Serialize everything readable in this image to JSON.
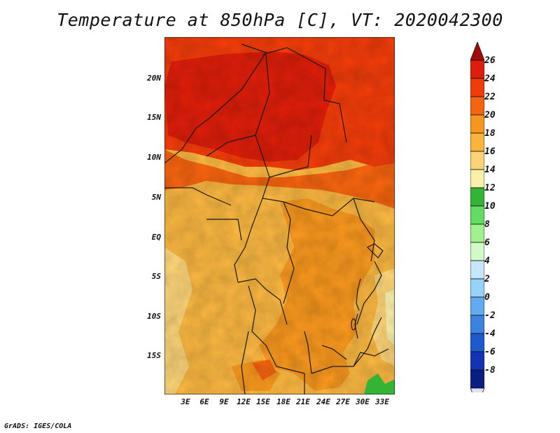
{
  "title": "Temperature at 850hPa [C], VT: 2020042300",
  "credit": "GrADS: IGES/COLA",
  "lat_labels": [
    "20N",
    "15N",
    "10N",
    "5N",
    "EQ",
    "5S",
    "10S",
    "15S"
  ],
  "lon_labels": [
    "3E",
    "6E",
    "9E",
    "12E",
    "15E",
    "18E",
    "21E",
    "24E",
    "27E",
    "30E",
    "33E"
  ],
  "colorbar": {
    "labels": [
      "26",
      "24",
      "22",
      "20",
      "18",
      "16",
      "14",
      "12",
      "10",
      "8",
      "6",
      "4",
      "2",
      "0",
      "-2",
      "-4",
      "-6",
      "-8"
    ],
    "colors": [
      "#a50a0a",
      "#dc1e0a",
      "#f03c0a",
      "#f5640f",
      "#f5961e",
      "#fab43c",
      "#fad278",
      "#faf0aa",
      "#34b434",
      "#64dc64",
      "#a0f08c",
      "#d2fac8",
      "#c8e6fa",
      "#96d2fa",
      "#64aaf0",
      "#3c82e1",
      "#1e5acd",
      "#1432b4",
      "#0a1e82",
      "#e1e1f5"
    ]
  },
  "map_domain": {
    "lon_range": [
      0,
      34.5
    ],
    "lat_range": [
      -20,
      24.5
    ]
  }
}
